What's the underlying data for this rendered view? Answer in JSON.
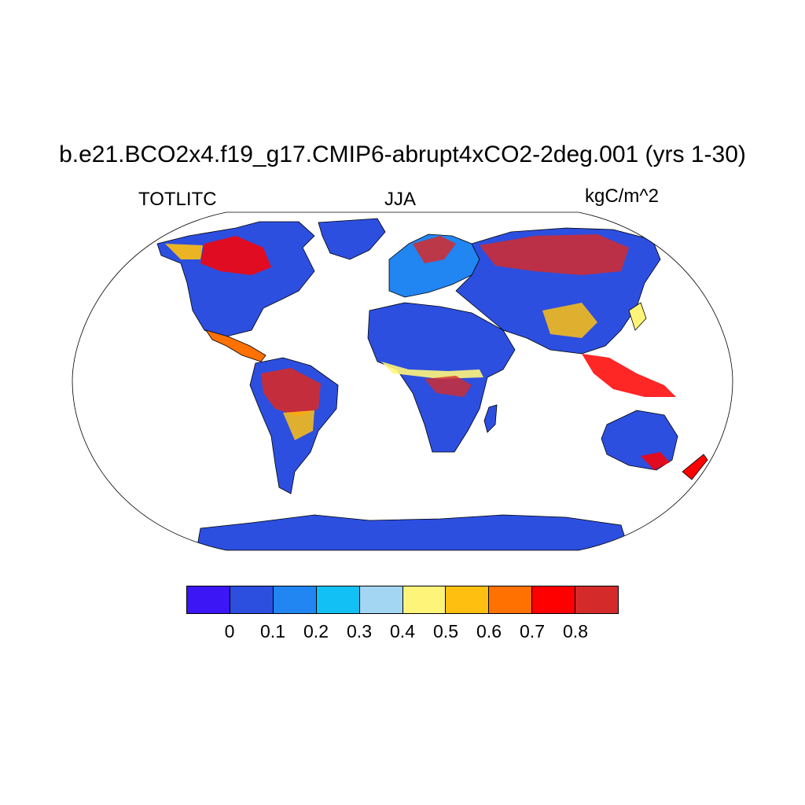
{
  "title": "b.e21.BCO2x4.f19_g17.CMIP6-abrupt4xCO2-2deg.001 (yrs 1-30)",
  "variable": "TOTLITC",
  "season": "JJA",
  "units": "kgC/m^2",
  "map": {
    "projection": "robinson",
    "ocean_color": "#ffffff",
    "coastline_color": "#000000"
  },
  "colorbar": {
    "colors": [
      "#3d16f5",
      "#2c4fe0",
      "#2185f2",
      "#13c0f5",
      "#a2d6f3",
      "#fff47a",
      "#ffbf10",
      "#ff7100",
      "#ff0000",
      "#d52a2a"
    ],
    "tick_labels": [
      "0",
      "0.1",
      "0.2",
      "0.3",
      "0.4",
      "0.5",
      "0.6",
      "0.7",
      "0.8"
    ]
  }
}
